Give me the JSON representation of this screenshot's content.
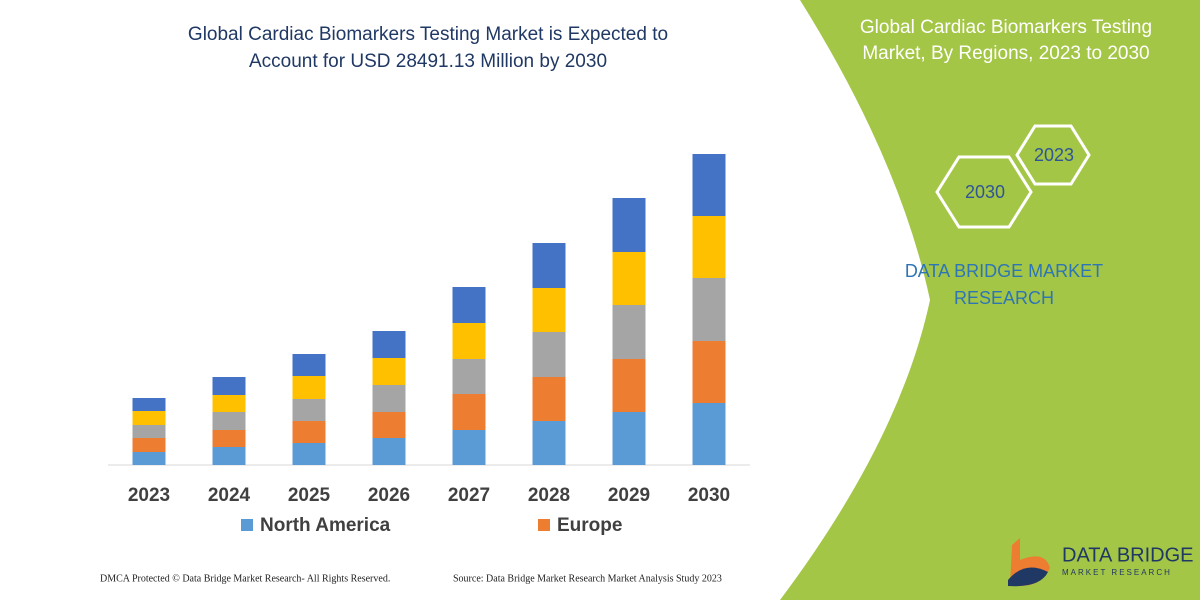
{
  "chart_data": {
    "type": "stacked-bar",
    "title": [
      "Global Cardiac Biomarkers Testing Market is Expected to",
      "Account for USD 28491.13 Million by 2030"
    ],
    "categories": [
      "2023",
      "2024",
      "2025",
      "2026",
      "2027",
      "2028",
      "2029",
      "2030"
    ],
    "series": [
      {
        "name": "North America",
        "color": "#5b9bd5",
        "values": [
          13,
          18,
          22,
          27,
          35,
          44,
          53,
          62
        ]
      },
      {
        "name": "Europe",
        "color": "#ed7d31",
        "values": [
          14,
          17,
          22,
          26,
          36,
          44,
          53,
          62
        ]
      },
      {
        "color": "#a5a5a5",
        "values": [
          13,
          18,
          22,
          27,
          35,
          45,
          54,
          63
        ]
      },
      {
        "color": "#ffc000",
        "values": [
          14,
          17,
          23,
          27,
          36,
          44,
          53,
          62
        ]
      },
      {
        "color": "#4472c4",
        "values": [
          13,
          18,
          22,
          27,
          36,
          45,
          54,
          62
        ]
      }
    ]
  },
  "side_panel": {
    "title": [
      "Global Cardiac Biomarkers Testing",
      "Market, By Regions, 2023 to 2030"
    ],
    "hexagons": [
      "2023",
      "2030"
    ],
    "brand": [
      "DATA BRIDGE MARKET",
      "RESEARCH"
    ]
  },
  "footer": {
    "copyright": "DMCA Protected © Data Bridge Market Research-  All Rights Reserved.",
    "source": "Source: Data Bridge Market Research  Market Analysis Study 2023",
    "logo": [
      "DATA BRIDGE",
      "MARKET RESEARCH"
    ]
  }
}
